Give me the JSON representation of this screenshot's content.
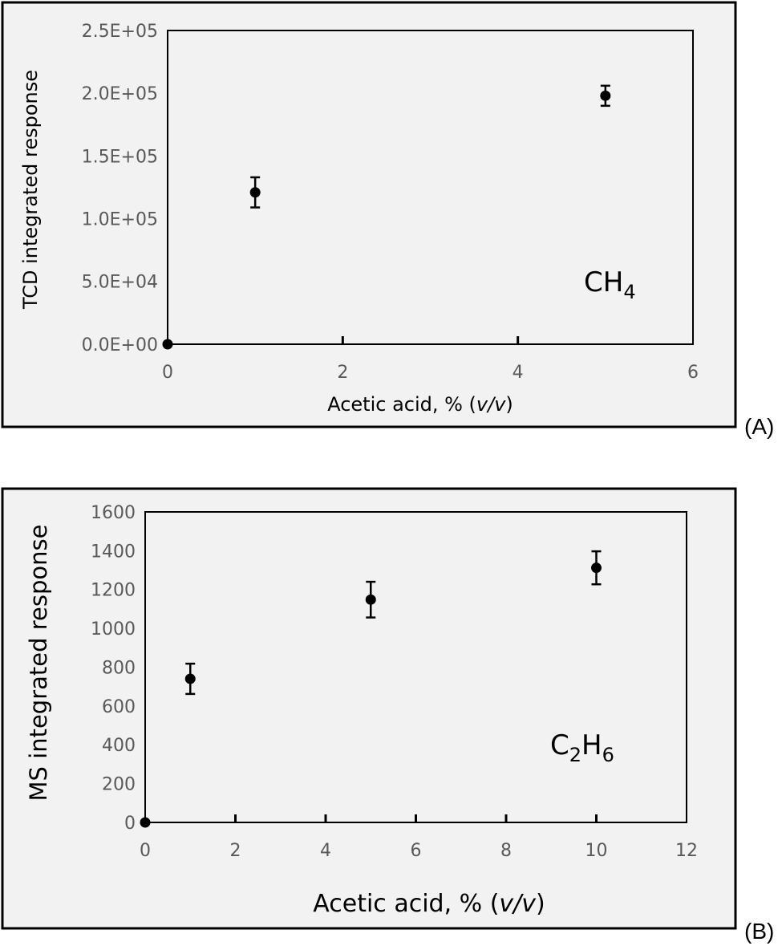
{
  "chart_data": [
    {
      "type": "scatter",
      "panel_label": "(A)",
      "annotation": {
        "base": "CH",
        "sub": "4"
      },
      "xlabel": {
        "main": "Acetic acid, % (",
        "italic": "v/v",
        "close": ")"
      },
      "ylabel": "TCD integrated response",
      "xlim": [
        0,
        6
      ],
      "ylim": [
        0,
        250000
      ],
      "x_ticks": [
        "0",
        "2",
        "4",
        "6"
      ],
      "y_ticks": [
        "0.0E+00",
        "5.0E+04",
        "1.0E+05",
        "1.5E+05",
        "2.0E+05",
        "2.5E+05"
      ],
      "grid": false,
      "points": [
        {
          "x": 0,
          "y": 0,
          "err": 0
        },
        {
          "x": 1,
          "y": 121000,
          "err": 12000
        },
        {
          "x": 5,
          "y": 198000,
          "err": 8000
        }
      ]
    },
    {
      "type": "scatter",
      "panel_label": "(B)",
      "annotation": {
        "base": "C",
        "sub1": "2",
        "mid": "H",
        "sub2": "6"
      },
      "xlabel": {
        "main": "Acetic acid, % (",
        "italic": "v/v",
        "close": ")"
      },
      "ylabel": "MS integrated response",
      "xlim": [
        0,
        12
      ],
      "ylim": [
        0,
        1600
      ],
      "x_ticks": [
        "0",
        "2",
        "4",
        "6",
        "8",
        "10",
        "12"
      ],
      "y_ticks": [
        "0",
        "200",
        "400",
        "600",
        "800",
        "1000",
        "1200",
        "1400",
        "1600"
      ],
      "grid": false,
      "points": [
        {
          "x": 0,
          "y": 0,
          "err": 0
        },
        {
          "x": 1,
          "y": 740,
          "err": 78
        },
        {
          "x": 5,
          "y": 1148,
          "err": 92
        },
        {
          "x": 10,
          "y": 1312,
          "err": 85
        }
      ]
    }
  ]
}
